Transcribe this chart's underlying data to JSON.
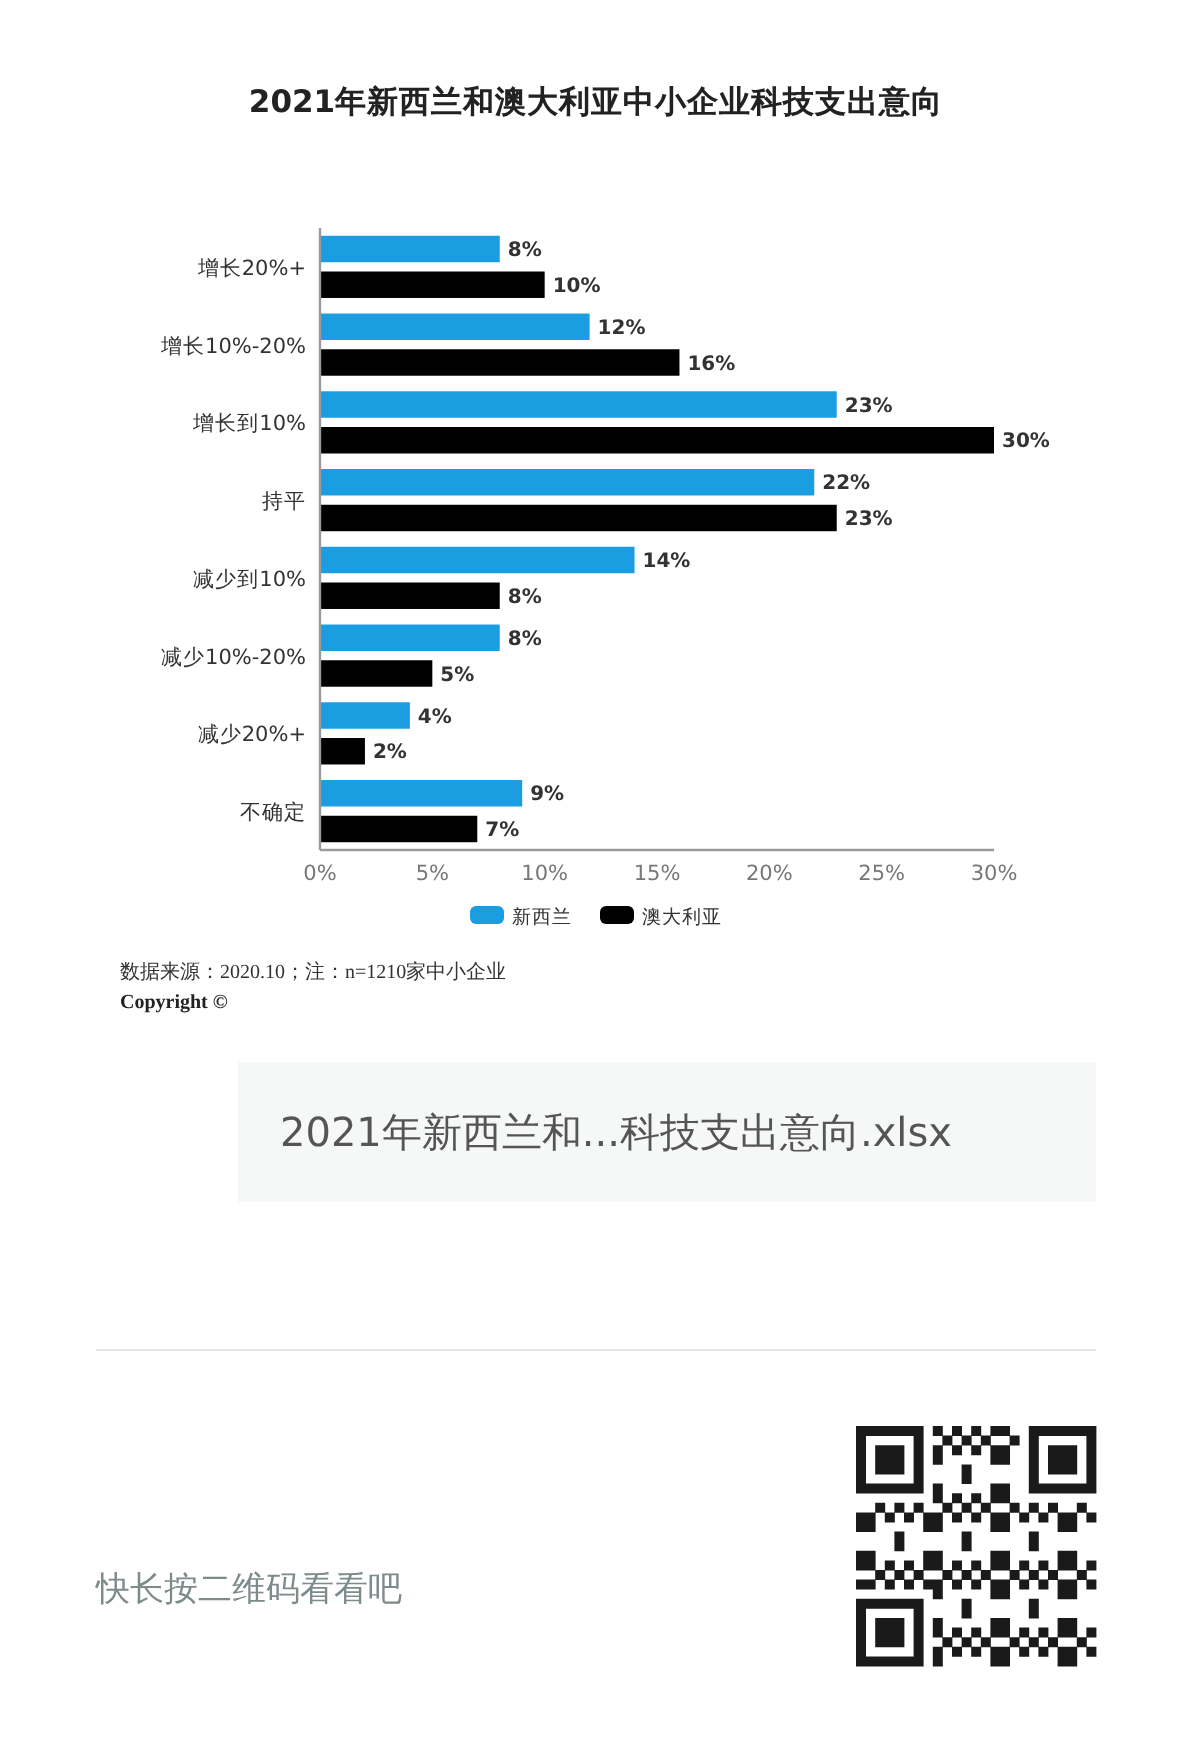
{
  "chart_data": {
    "type": "bar",
    "orientation": "horizontal",
    "title": "2021年新西兰和澳大利亚中小企业科技支出意向",
    "categories": [
      "增长20%+",
      "增长10%-20%",
      "增长到10%",
      "持平",
      "减少到10%",
      "减少10%-20%",
      "减少20%+",
      "不确定"
    ],
    "series": [
      {
        "name": "新西兰",
        "color": "#1b9de2",
        "values": [
          8,
          12,
          23,
          22,
          14,
          8,
          4,
          9
        ],
        "value_labels": [
          "8%",
          "12%",
          "23%",
          "22%",
          "14%",
          "8%",
          "4%",
          "9%"
        ]
      },
      {
        "name": "澳大利亚",
        "color": "#000000",
        "values": [
          10,
          16,
          30,
          23,
          8,
          5,
          2,
          7
        ],
        "value_labels": [
          "10%",
          "16%",
          "30%",
          "23%",
          "8%",
          "5%",
          "2%",
          "7%"
        ]
      }
    ],
    "xlim": [
      0,
      30
    ],
    "xticks": [
      {
        "value": 0,
        "label": "0%"
      },
      {
        "value": 5,
        "label": "5%"
      },
      {
        "value": 10,
        "label": "10%"
      },
      {
        "value": 15,
        "label": "15%"
      },
      {
        "value": 20,
        "label": "20%"
      },
      {
        "value": 25,
        "label": "25%"
      },
      {
        "value": 30,
        "label": "30%"
      }
    ],
    "legend": "bottom",
    "annotations": [
      "数据来源：2020.10；注：n=1210家中小企业",
      "Copyright ©",
      "2021年新西兰和...科技支出意向.xlsx",
      "快长按二维码看看吧"
    ]
  }
}
